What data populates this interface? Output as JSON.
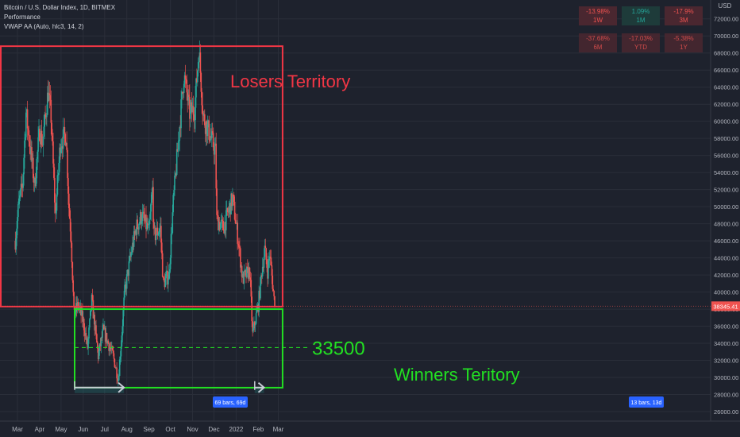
{
  "header": {
    "symbol": "Bitcoin / U.S. Dollar Index, 1D, BITMEX",
    "indicator1": "Performance",
    "indicator2": "VWAP AA (Auto, hlc3, 14, 2)"
  },
  "performance": [
    {
      "value": "-13.98%",
      "period": "1W",
      "sign": "neg"
    },
    {
      "value": "1.09%",
      "period": "1M",
      "sign": "pos"
    },
    {
      "value": "-17.9%",
      "period": "3M",
      "sign": "neg"
    },
    {
      "value": "-37.68%",
      "period": "6M",
      "sign": "neg"
    },
    {
      "value": "-17.03%",
      "period": "YTD",
      "sign": "neg"
    },
    {
      "value": "-5.38%",
      "period": "1Y",
      "sign": "neg"
    }
  ],
  "chart_data": {
    "type": "candlestick",
    "currency_label": "USD",
    "ylim": [
      26000,
      73000
    ],
    "y_ticks": [
      26000,
      28000,
      30000,
      32000,
      34000,
      36000,
      38000,
      40000,
      42000,
      44000,
      46000,
      48000,
      50000,
      52000,
      54000,
      56000,
      58000,
      60000,
      62000,
      64000,
      66000,
      68000,
      70000,
      72000
    ],
    "x_ticks": [
      "Mar",
      "Apr",
      "May",
      "Jun",
      "Jul",
      "Aug",
      "Sep",
      "Oct",
      "Nov",
      "Dec",
      "2022",
      "Feb",
      "Mar"
    ],
    "last_price": "38345.41",
    "price_path": [
      [
        "2021-02-26",
        46000
      ],
      [
        "2021-03-03",
        50500
      ],
      [
        "2021-03-08",
        52500
      ],
      [
        "2021-03-13",
        61000
      ],
      [
        "2021-03-18",
        57500
      ],
      [
        "2021-03-25",
        52500
      ],
      [
        "2021-04-01",
        59000
      ],
      [
        "2021-04-05",
        57500
      ],
      [
        "2021-04-13",
        63500
      ],
      [
        "2021-04-17",
        60500
      ],
      [
        "2021-04-23",
        49000
      ],
      [
        "2021-04-30",
        57500
      ],
      [
        "2021-05-08",
        58500
      ],
      [
        "2021-05-12",
        50000
      ],
      [
        "2021-05-15",
        46500
      ],
      [
        "2021-05-19",
        37500
      ],
      [
        "2021-05-25",
        38500
      ],
      [
        "2021-06-01",
        36500
      ],
      [
        "2021-06-07",
        33500
      ],
      [
        "2021-06-13",
        39000
      ],
      [
        "2021-06-22",
        32500
      ],
      [
        "2021-06-29",
        35500
      ],
      [
        "2021-07-06",
        34000
      ],
      [
        "2021-07-13",
        32500
      ],
      [
        "2021-07-20",
        29800
      ],
      [
        "2021-07-24",
        34000
      ],
      [
        "2021-07-29",
        40000
      ],
      [
        "2021-08-07",
        44500
      ],
      [
        "2021-08-14",
        47500
      ],
      [
        "2021-08-22",
        49000
      ],
      [
        "2021-09-01",
        47000
      ],
      [
        "2021-09-06",
        52000
      ],
      [
        "2021-09-08",
        46500
      ],
      [
        "2021-09-17",
        47500
      ],
      [
        "2021-09-21",
        41000
      ],
      [
        "2021-09-29",
        42000
      ],
      [
        "2021-10-05",
        50500
      ],
      [
        "2021-10-15",
        60500
      ],
      [
        "2021-10-20",
        65500
      ],
      [
        "2021-10-28",
        61000
      ],
      [
        "2021-11-04",
        61500
      ],
      [
        "2021-11-10",
        68500
      ],
      [
        "2021-11-16",
        60500
      ],
      [
        "2021-11-25",
        58500
      ],
      [
        "2021-12-03",
        56500
      ],
      [
        "2021-12-05",
        48500
      ],
      [
        "2021-12-14",
        47500
      ],
      [
        "2021-12-27",
        51000
      ],
      [
        "2022-01-04",
        46000
      ],
      [
        "2022-01-10",
        41500
      ],
      [
        "2022-01-20",
        42500
      ],
      [
        "2022-01-24",
        35000
      ],
      [
        "2022-02-01",
        38500
      ],
      [
        "2022-02-06",
        42500
      ],
      [
        "2022-02-10",
        45000
      ],
      [
        "2022-02-14",
        42500
      ],
      [
        "2022-02-17",
        44500
      ],
      [
        "2022-02-24",
        38345
      ]
    ],
    "annotations": {
      "losers_label": "Losers Territory",
      "winners_label": "Winners Teritory",
      "level_label": "33500",
      "level_value": 33500,
      "losers_zone": {
        "x_start": "2021-02-26",
        "x_end": "2022-03-07",
        "y_low": 38300,
        "y_high": 68800
      },
      "winners_zone": {
        "x_start": "2021-05-20",
        "x_end": "2022-03-07",
        "y_low": 28800,
        "y_high": 38000
      },
      "range1_label": "69 bars, 69d",
      "range1": {
        "x_start": "2021-05-20",
        "x_end": "2021-07-28",
        "y": 29000
      },
      "range2_label": "13 bars, 13d",
      "range2": {
        "x_start": "2022-01-27",
        "x_end": "2022-02-09",
        "y": 29000
      }
    },
    "colors": {
      "up": "#26a69a",
      "down": "#ef5350",
      "losers": "#f23645",
      "winners": "#22e022",
      "grid": "#2a2e39",
      "background": "#1e222d"
    }
  }
}
